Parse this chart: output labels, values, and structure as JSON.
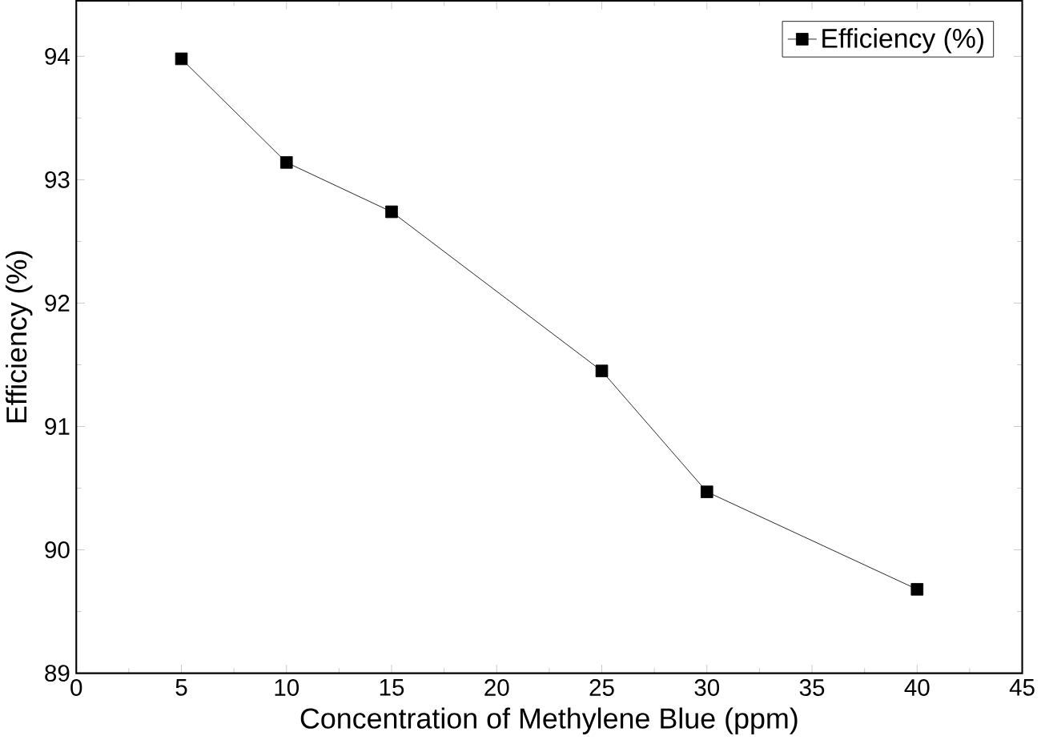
{
  "chart_data": {
    "type": "line",
    "xlabel": "Concentration of Methylene Blue (ppm)",
    "ylabel": "Efficiency (%)",
    "x": [
      5,
      10,
      15,
      25,
      30,
      40
    ],
    "series": [
      {
        "name": "Efficiency (%)",
        "color": "#000000",
        "values": [
          93.98,
          93.14,
          92.74,
          91.45,
          90.47,
          89.68
        ]
      }
    ],
    "xlim": [
      0,
      45
    ],
    "xticks": [
      0,
      5,
      10,
      15,
      20,
      25,
      30,
      35,
      40,
      45
    ],
    "ylim": [
      89,
      94.45
    ],
    "yticks": [
      89,
      90,
      91,
      92,
      93,
      94
    ],
    "marker": "square",
    "line_style": "solid",
    "legend": "top right",
    "grid": false
  }
}
